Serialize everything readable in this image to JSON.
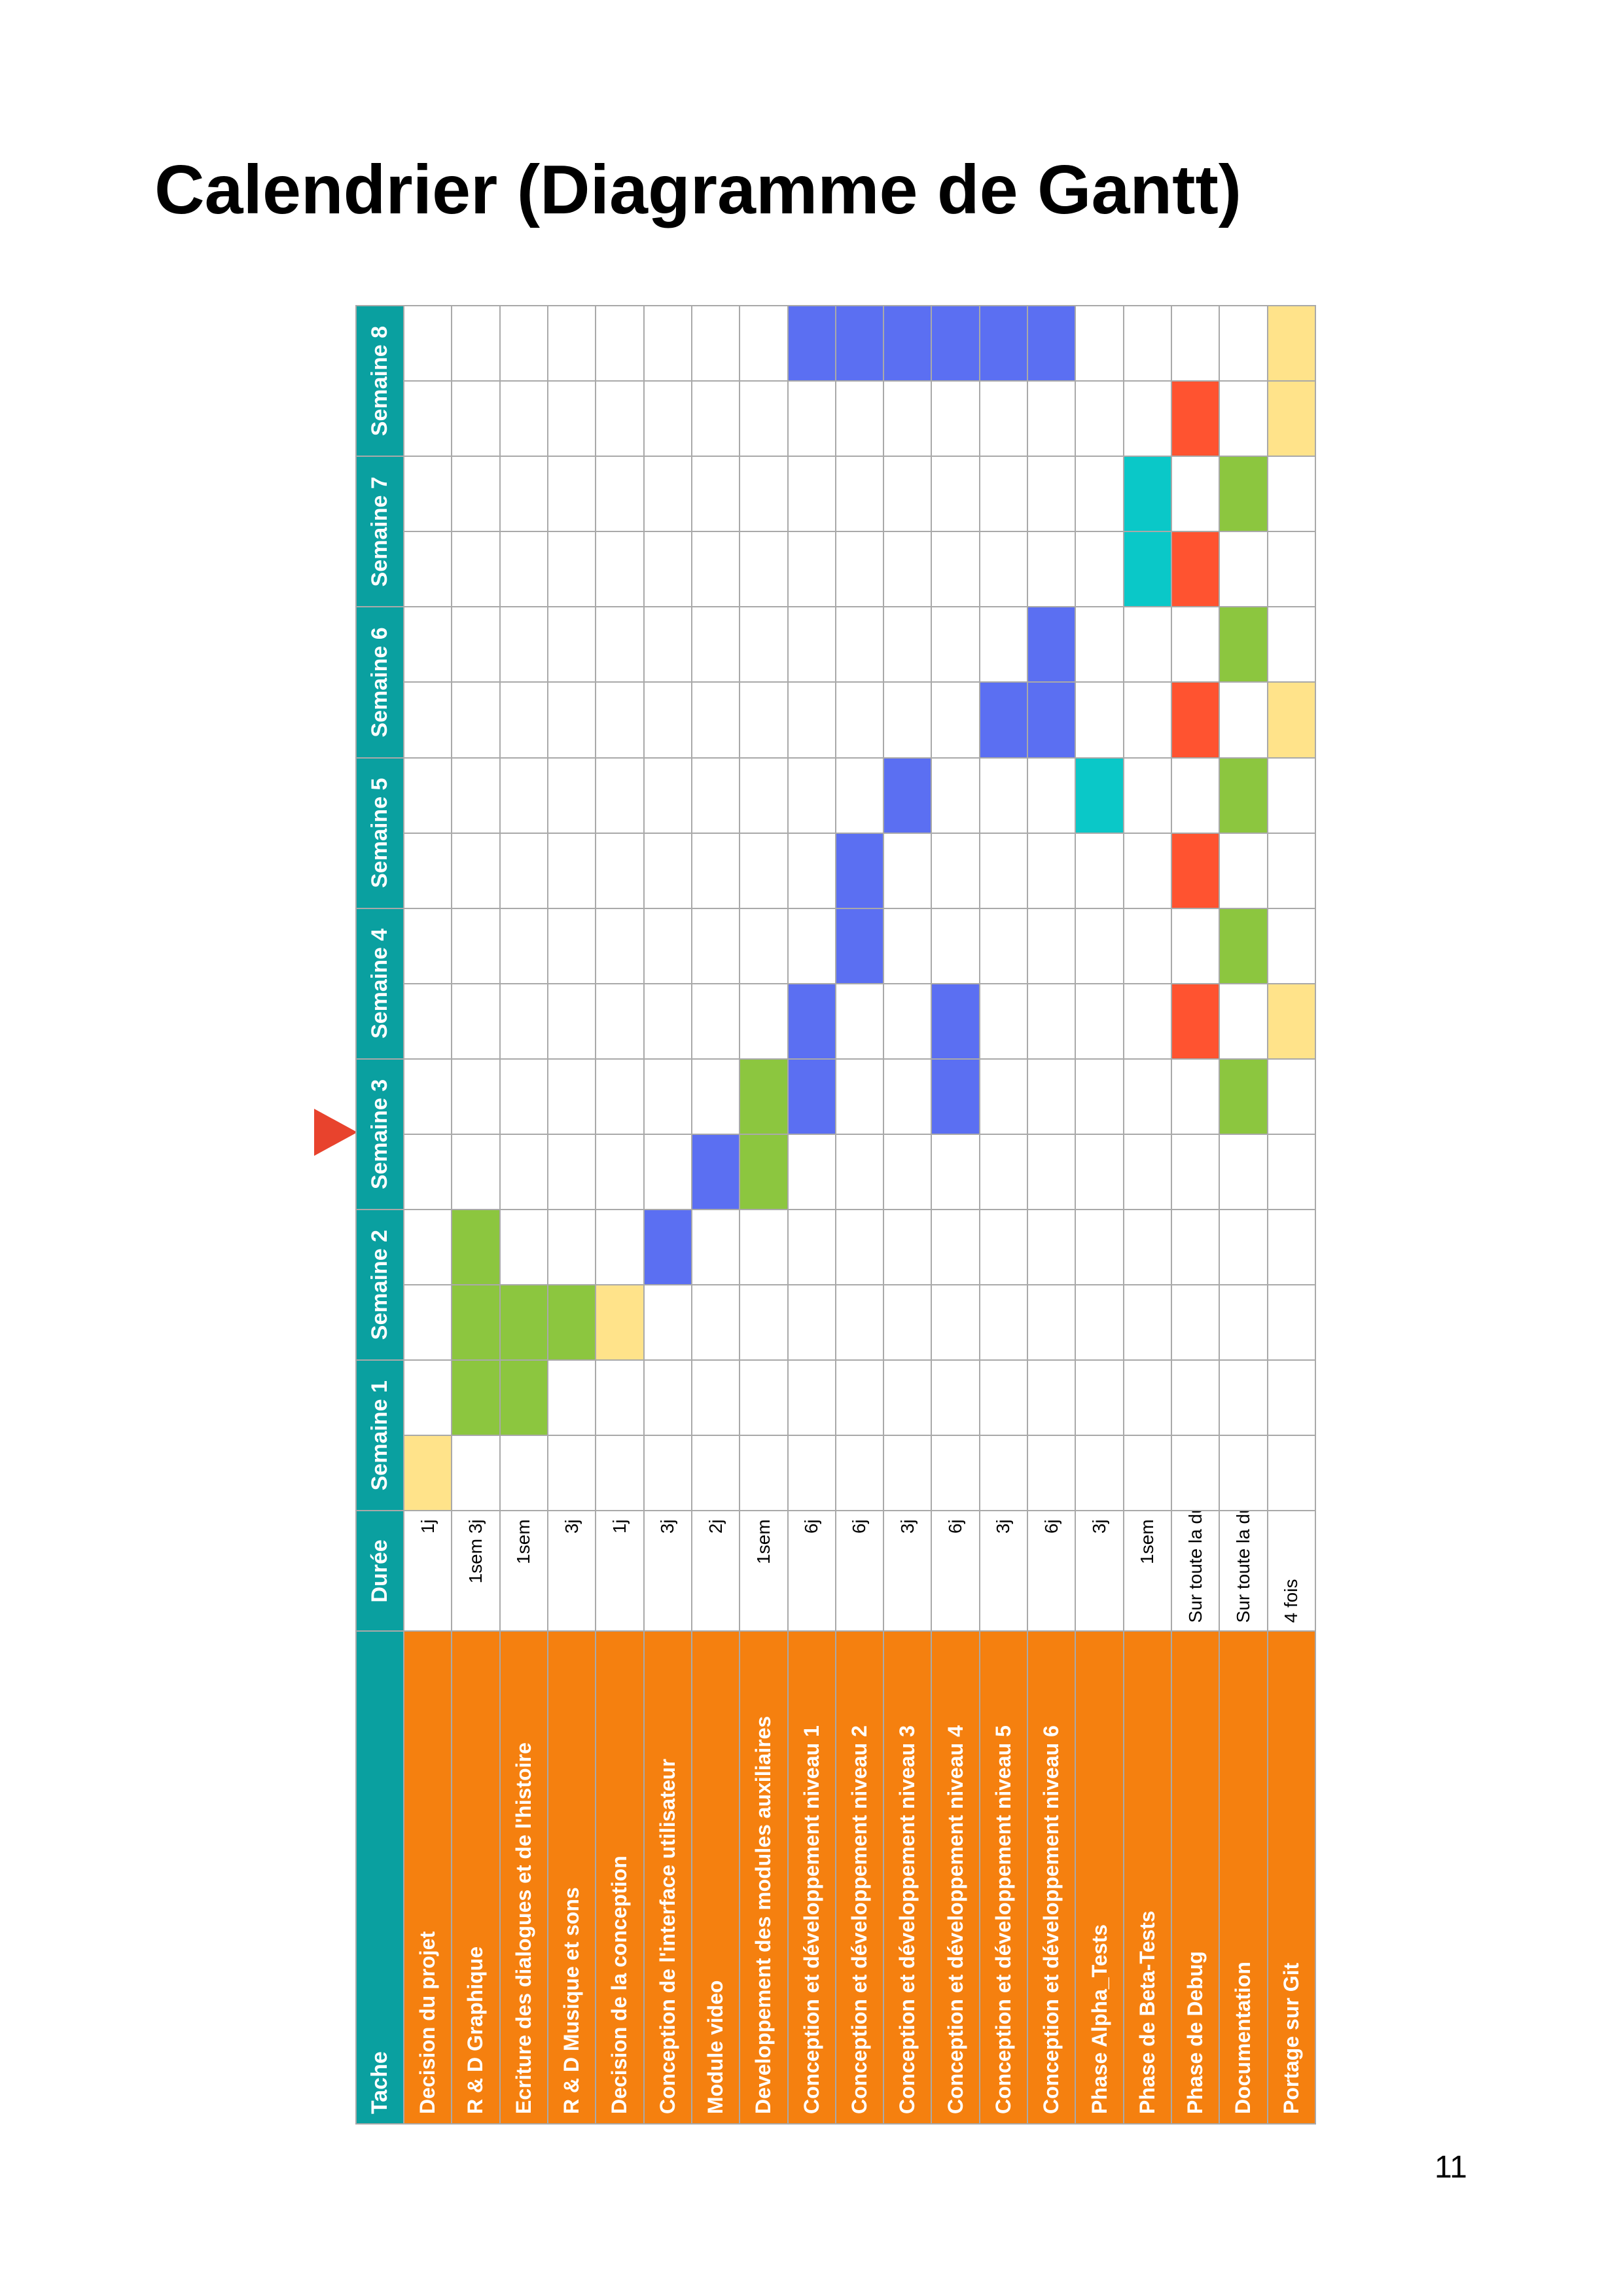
{
  "page": {
    "title": "Calendrier (Diagramme de Gantt)",
    "page_number": "11"
  },
  "legend_colors": {
    "green": "#8cc63f",
    "blue": "#5b6ff2",
    "red": "#ff5330",
    "yellow": "#ffe38a",
    "teal": "#0ac8c8",
    "header": "#0aa0a0",
    "task": "#f5800f"
  },
  "gantt": {
    "headers": {
      "task": "Tache",
      "duration": "Durée",
      "weeks": [
        "Semaine 1",
        "Semaine 2",
        "Semaine 3",
        "Semaine 4",
        "Semaine 5",
        "Semaine 6",
        "Semaine 7",
        "Semaine 8"
      ]
    },
    "current_marker_half_slot": 5,
    "rows": [
      {
        "task": "Decision du projet",
        "duration": "1j",
        "dur_align": "right",
        "cells": {
          "0": "yellow"
        }
      },
      {
        "task": "R & D Graphique",
        "duration": "1sem 3j",
        "dur_align": "right",
        "cells": {
          "1": "green",
          "2": "green",
          "3": "green"
        }
      },
      {
        "task": "Ecriture des dialogues et de l'histoire",
        "duration": "1sem",
        "dur_align": "right",
        "cells": {
          "1": "green",
          "2": "green"
        }
      },
      {
        "task": "R & D Musique et sons",
        "duration": "3j",
        "dur_align": "right",
        "cells": {
          "2": "green"
        }
      },
      {
        "task": "Decision de la conception",
        "duration": "1j",
        "dur_align": "right",
        "cells": {
          "2": "yellow"
        }
      },
      {
        "task": "Conception de l'interface utilisateur",
        "duration": "3j",
        "dur_align": "right",
        "cells": {
          "3": "blue"
        }
      },
      {
        "task": "Module video",
        "duration": "2j",
        "dur_align": "right",
        "cells": {
          "4": "blue"
        }
      },
      {
        "task": "Developpement des modules auxiliaires",
        "duration": "1sem",
        "dur_align": "right",
        "cells": {
          "4": "green",
          "5": "green"
        }
      },
      {
        "task": "Conception et développement niveau 1",
        "duration": "6j",
        "dur_align": "right",
        "cells": {
          "5": "blue",
          "6": "blue",
          "15": "blue"
        }
      },
      {
        "task": "Conception et développement niveau 2",
        "duration": "6j",
        "dur_align": "right",
        "cells": {
          "7": "blue",
          "8": "blue",
          "15": "blue"
        }
      },
      {
        "task": "Conception et développement niveau 3",
        "duration": "3j",
        "dur_align": "right",
        "cells": {
          "9": "blue",
          "15": "blue"
        }
      },
      {
        "task": "Conception et développement niveau 4",
        "duration": "6j",
        "dur_align": "right",
        "cells": {
          "5": "blue",
          "6": "blue",
          "15": "blue"
        }
      },
      {
        "task": "Conception et développement niveau 5",
        "duration": "3j",
        "dur_align": "right",
        "cells": {
          "10": "blue",
          "15": "blue"
        }
      },
      {
        "task": "Conception et développement niveau 6",
        "duration": "6j",
        "dur_align": "right",
        "cells": {
          "10": "blue",
          "11": "blue",
          "15": "blue"
        }
      },
      {
        "task": "Phase Alpha_Tests",
        "duration": "3j",
        "dur_align": "right",
        "cells": {
          "9": "teal"
        }
      },
      {
        "task": "Phase de Beta-Tests",
        "duration": "1sem",
        "dur_align": "right",
        "cells": {
          "12": "teal",
          "13": "teal"
        }
      },
      {
        "task": "Phase de Debug",
        "duration": "Sur toute la durée",
        "dur_align": "left",
        "cells": {
          "6": "red",
          "8": "red",
          "10": "red",
          "12": "red",
          "14": "red"
        }
      },
      {
        "task": "Documentation",
        "duration": "Sur toute la durée",
        "dur_align": "left",
        "cells": {
          "5": "green",
          "7": "green",
          "9": "green",
          "11": "green",
          "13": "green"
        }
      },
      {
        "task": "Portage sur Git",
        "duration": "4 fois",
        "dur_align": "left",
        "cells": {
          "6": "yellow",
          "10": "yellow",
          "14": "yellow",
          "15": "yellow"
        }
      }
    ]
  }
}
